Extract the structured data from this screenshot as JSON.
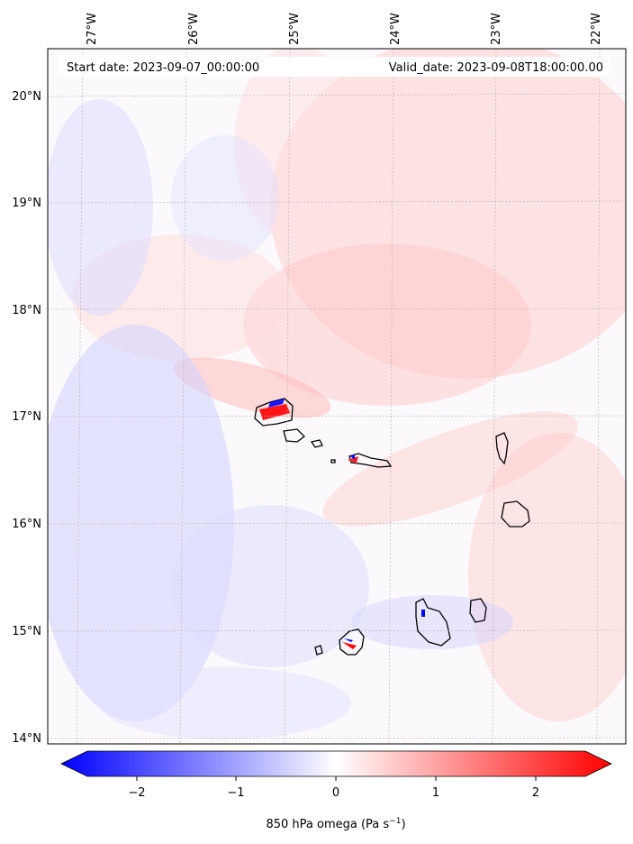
{
  "map": {
    "start_label": "Start date: 2023-09-07_00:00:00",
    "valid_label": "Valid_date: 2023-09-08T18:00:00.00",
    "lon_ticks": [
      "27°W",
      "26°W",
      "25°W",
      "24°W",
      "23°W",
      "22°W"
    ],
    "lat_ticks": [
      "20°N",
      "19°N",
      "18°N",
      "17°N",
      "16°N",
      "15°N",
      "14°N"
    ],
    "field": "850 hPa omega",
    "colors": {
      "negative": "#0000ff",
      "zero": "#ffffff",
      "positive": "#ff0000",
      "coast": "#000000"
    }
  },
  "colorbar": {
    "label_main": "850 hPa omega (Pa s",
    "label_exp": "−1",
    "label_close": ")",
    "range": [
      -2.6,
      2.6
    ],
    "ticks": [
      "−2",
      "−1",
      "0",
      "1",
      "2"
    ]
  }
}
